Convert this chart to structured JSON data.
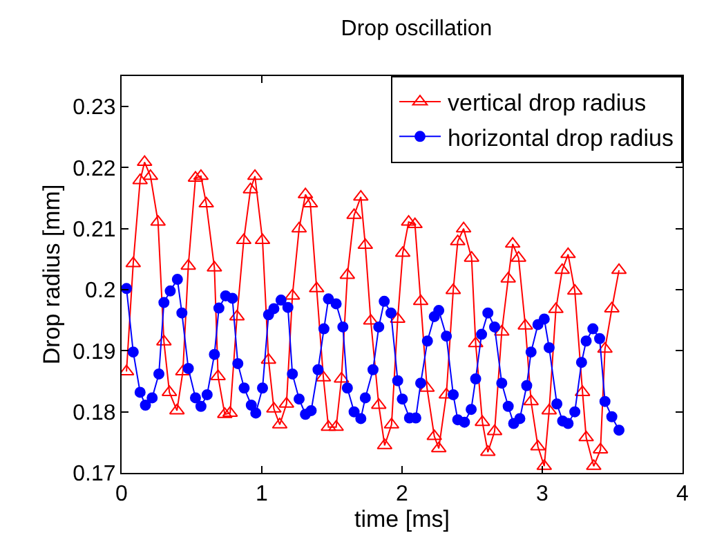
{
  "chart_data": {
    "type": "line",
    "title": "Drop oscillation",
    "xlabel": "time [ms]",
    "ylabel": "Drop radius [mm]",
    "xlim": [
      0,
      4
    ],
    "xticks": [
      0,
      1,
      2,
      3,
      4
    ],
    "ylim": [
      0.17,
      0.235
    ],
    "yticks": [
      0.17,
      0.18,
      0.19,
      0.2,
      0.21,
      0.22,
      0.23
    ],
    "legend": "top right",
    "line_style": "solid",
    "series": [
      {
        "name": "vertical drop radius",
        "color": "#ff0000",
        "marker": "triangle",
        "x": [
          0.035,
          0.083,
          0.132,
          0.164,
          0.206,
          0.26,
          0.302,
          0.341,
          0.395,
          0.437,
          0.476,
          0.527,
          0.566,
          0.604,
          0.662,
          0.688,
          0.736,
          0.774,
          0.823,
          0.871,
          0.919,
          0.951,
          1.005,
          1.048,
          1.086,
          1.128,
          1.176,
          1.218,
          1.266,
          1.311,
          1.346,
          1.391,
          1.439,
          1.475,
          1.53,
          1.568,
          1.61,
          1.658,
          1.706,
          1.738,
          1.777,
          1.834,
          1.876,
          1.925,
          1.969,
          2.005,
          2.047,
          2.092,
          2.133,
          2.178,
          2.23,
          2.262,
          2.316,
          2.365,
          2.397,
          2.439,
          2.496,
          2.525,
          2.573,
          2.612,
          2.66,
          2.711,
          2.757,
          2.789,
          2.831,
          2.879,
          2.92,
          2.969,
          3.014,
          3.049,
          3.097,
          3.142,
          3.184,
          3.232,
          3.287,
          3.313,
          3.367,
          3.415,
          3.447,
          3.496,
          3.547
        ],
        "values": [
          0.1866,
          0.2043,
          0.2179,
          0.2209,
          0.2186,
          0.2111,
          0.1915,
          0.1832,
          0.1802,
          0.1866,
          0.2039,
          0.2183,
          0.2186,
          0.2141,
          0.2036,
          0.1858,
          0.1796,
          0.1798,
          0.1956,
          0.2081,
          0.2164,
          0.2186,
          0.2081,
          0.1885,
          0.1805,
          0.1779,
          0.1813,
          0.199,
          0.21,
          0.2156,
          0.2141,
          0.2002,
          0.1856,
          0.1775,
          0.1775,
          0.1854,
          0.2024,
          0.2122,
          0.2152,
          0.2073,
          0.1949,
          0.1811,
          0.1745,
          0.1779,
          0.1952,
          0.206,
          0.2111,
          0.2107,
          0.1981,
          0.1839,
          0.176,
          0.174,
          0.1828,
          0.1999,
          0.2079,
          0.21,
          0.2052,
          0.1912,
          0.1783,
          0.1734,
          0.1768,
          0.1931,
          0.2018,
          0.2075,
          0.2052,
          0.1941,
          0.1817,
          0.1743,
          0.1711,
          0.1802,
          0.1968,
          0.2032,
          0.2058,
          0.1998,
          0.1832,
          0.1758,
          0.1711,
          0.1738,
          0.1903,
          0.1969,
          0.2032
        ]
      },
      {
        "name": "horizontal drop radius",
        "color": "#0000ff",
        "marker": "circle",
        "x": [
          0.035,
          0.083,
          0.132,
          0.17,
          0.218,
          0.266,
          0.302,
          0.347,
          0.398,
          0.43,
          0.476,
          0.527,
          0.566,
          0.61,
          0.662,
          0.694,
          0.742,
          0.79,
          0.829,
          0.874,
          0.925,
          0.957,
          1.005,
          1.048,
          1.086,
          1.137,
          1.186,
          1.218,
          1.266,
          1.311,
          1.352,
          1.401,
          1.443,
          1.475,
          1.53,
          1.578,
          1.61,
          1.658,
          1.706,
          1.738,
          1.793,
          1.834,
          1.873,
          1.921,
          1.969,
          2.002,
          2.053,
          2.098,
          2.133,
          2.181,
          2.23,
          2.262,
          2.316,
          2.365,
          2.397,
          2.445,
          2.493,
          2.525,
          2.567,
          2.612,
          2.66,
          2.711,
          2.757,
          2.796,
          2.84,
          2.889,
          2.92,
          2.969,
          3.014,
          3.049,
          3.104,
          3.145,
          3.184,
          3.232,
          3.28,
          3.313,
          3.361,
          3.409,
          3.447,
          3.496,
          3.547
        ],
        "values": [
          0.2002,
          0.1898,
          0.1832,
          0.1811,
          0.1823,
          0.1862,
          0.1979,
          0.1998,
          0.2017,
          0.1962,
          0.1871,
          0.1823,
          0.1809,
          0.1828,
          0.1894,
          0.197,
          0.199,
          0.1986,
          0.1879,
          0.1839,
          0.1811,
          0.1798,
          0.1839,
          0.1959,
          0.1969,
          0.1983,
          0.1971,
          0.1862,
          0.1821,
          0.1796,
          0.1802,
          0.1869,
          0.1936,
          0.1985,
          0.1977,
          0.1939,
          0.1839,
          0.18,
          0.1789,
          0.1823,
          0.1869,
          0.1939,
          0.1981,
          0.1962,
          0.1851,
          0.1821,
          0.179,
          0.179,
          0.1847,
          0.1916,
          0.1956,
          0.1966,
          0.1924,
          0.1828,
          0.1787,
          0.1783,
          0.1804,
          0.1854,
          0.1927,
          0.1962,
          0.1939,
          0.1847,
          0.1809,
          0.1781,
          0.1789,
          0.1843,
          0.1898,
          0.1943,
          0.1952,
          0.1905,
          0.1813,
          0.1785,
          0.1781,
          0.18,
          0.1881,
          0.1916,
          0.1936,
          0.192,
          0.1817,
          0.1792,
          0.177
        ]
      }
    ]
  }
}
